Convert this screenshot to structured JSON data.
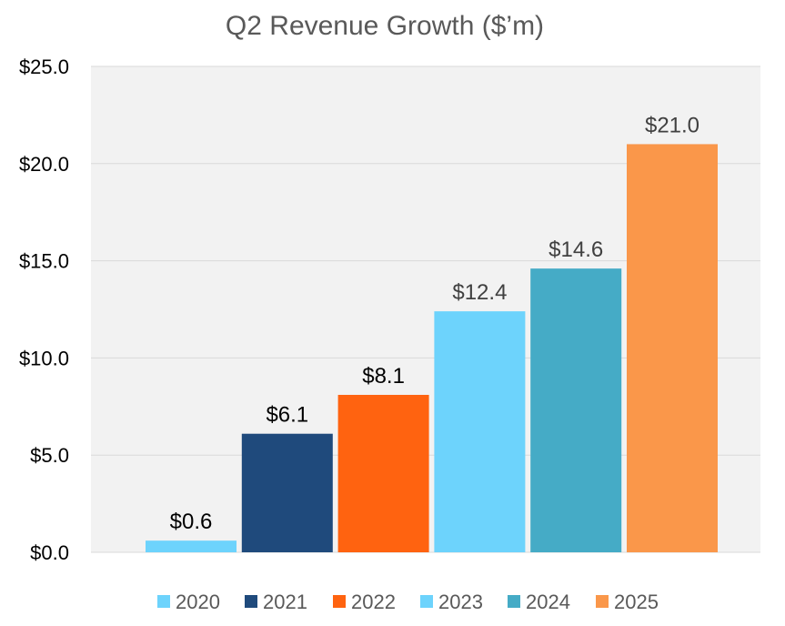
{
  "chart_data": {
    "type": "bar",
    "title": "Q2 Revenue Growth ($’m)",
    "xlabel": "",
    "ylabel": "",
    "ylim": [
      0,
      25
    ],
    "yticks": [
      0,
      5,
      10,
      15,
      20,
      25
    ],
    "ytick_labels": [
      "$0.0",
      "$5.0",
      "$10.0",
      "$15.0",
      "$20.0",
      "$25.0"
    ],
    "grid": true,
    "legend_position": "bottom",
    "categories": [
      "2020",
      "2021",
      "2022",
      "2023",
      "2024",
      "2025"
    ],
    "values": [
      0.6,
      6.1,
      8.1,
      12.4,
      14.6,
      21.0
    ],
    "data_labels": [
      "$0.6",
      "$6.1",
      "$8.1",
      "$12.4",
      "$14.6",
      "$21.0"
    ],
    "colors": [
      "#6DD3FC",
      "#1F4A7C",
      "#FF6310",
      "#6DD3FC",
      "#45ABC6",
      "#FA974A"
    ],
    "data_label_colors": [
      "#000000",
      "#000000",
      "#000000",
      "#404040",
      "#404040",
      "#404040"
    ],
    "plot_background": "#F2F2F2",
    "grid_color": "#D9D9D9",
    "text_color": "#595959",
    "tick_label_color": "#000000"
  }
}
